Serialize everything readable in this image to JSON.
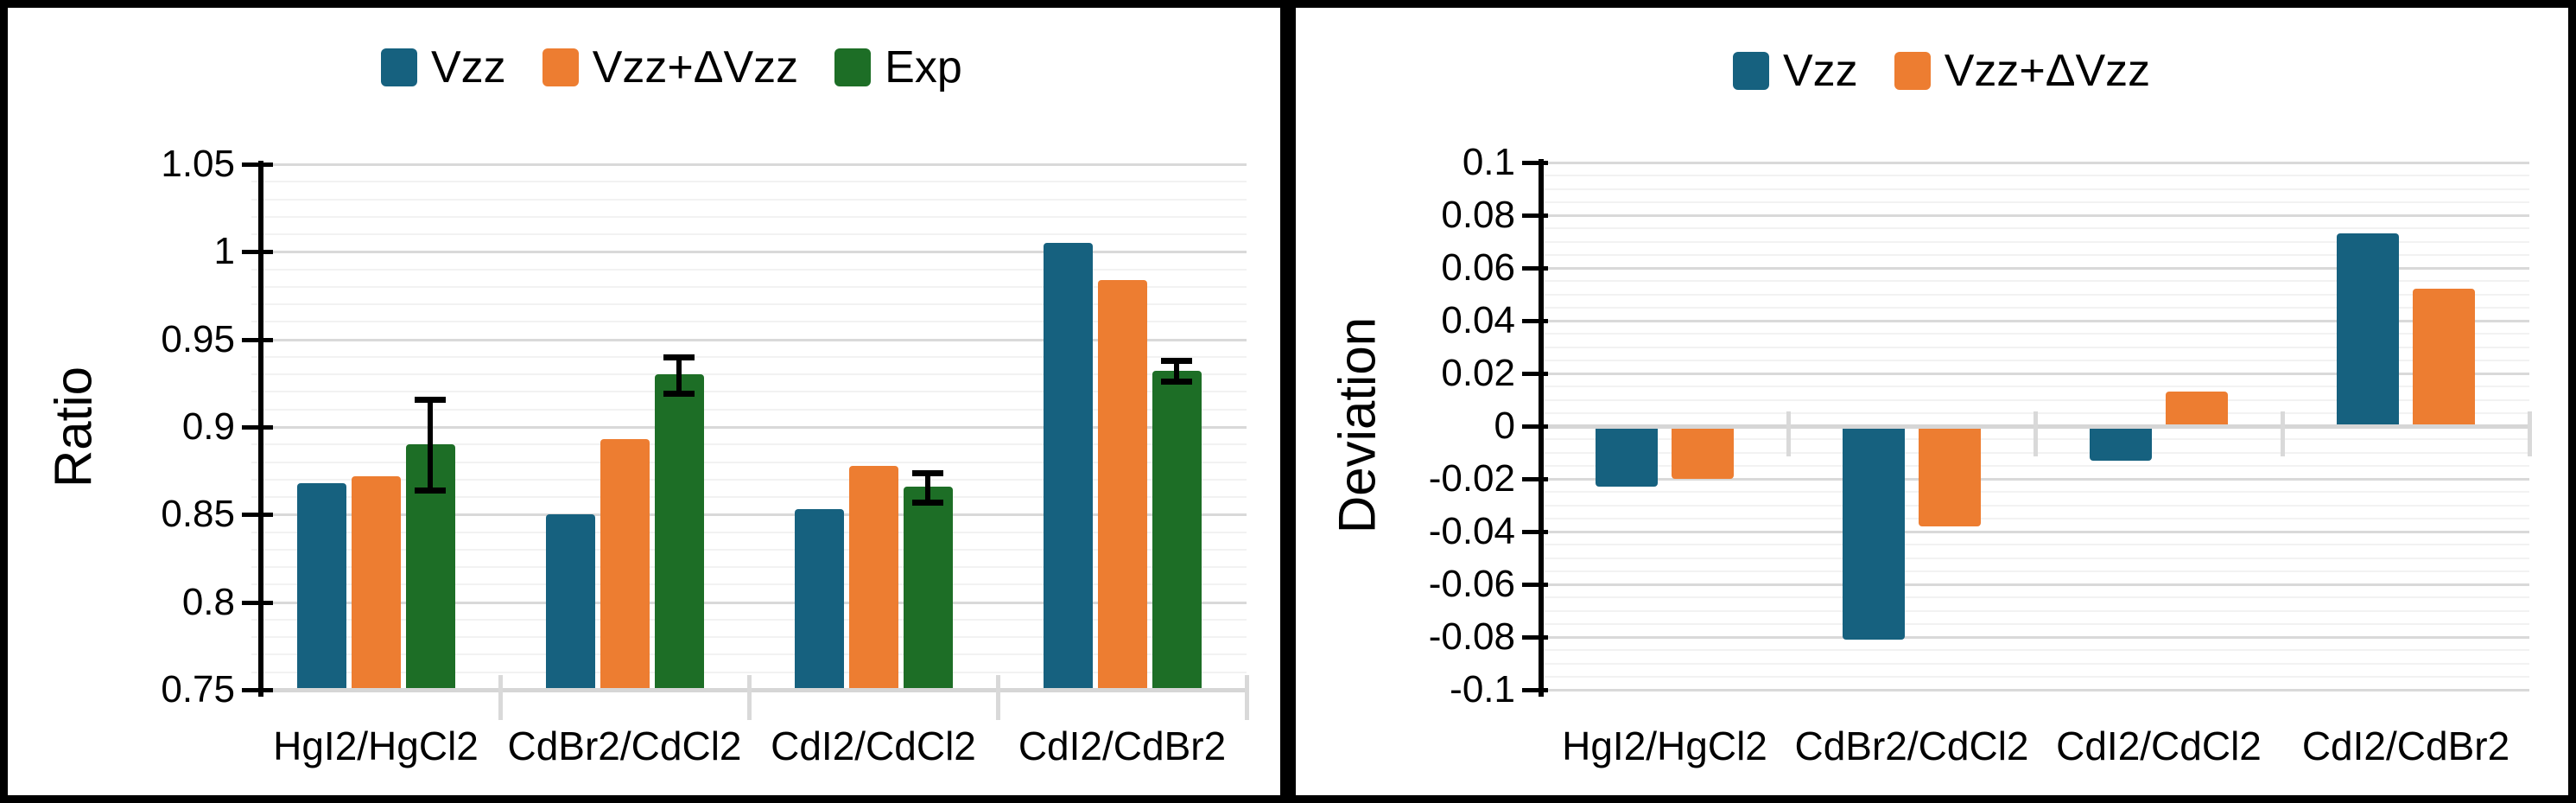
{
  "figure": {
    "background": "#ffffff",
    "border_color": "#000000"
  },
  "chart_data": [
    {
      "type": "bar",
      "panel": "left",
      "title": "",
      "xlabel": "",
      "ylabel": "Ratio",
      "categories": [
        "HgI2/HgCl2",
        "CdBr2/CdCl2",
        "CdI2/CdCl2",
        "CdI2/CdBr2"
      ],
      "ylim": [
        0.75,
        1.05
      ],
      "ytick_step": 0.05,
      "yminor_step": 0.01,
      "ytick_labels": [
        "1.05",
        "1",
        "0.95",
        "0.9",
        "0.85",
        "0.8",
        "0.75"
      ],
      "grid": true,
      "legend_position": "top",
      "series": [
        {
          "name": "Vzz",
          "color": "#16617f",
          "values": [
            0.868,
            0.85,
            0.853,
            1.005
          ]
        },
        {
          "name": "Vzz+ΔVzz",
          "color": "#ed7d31",
          "values": [
            0.872,
            0.893,
            0.878,
            0.984
          ]
        },
        {
          "name": "Exp",
          "color": "#1d6e26",
          "values": [
            0.89,
            0.93,
            0.866,
            0.932
          ],
          "error_bars": {
            "low": [
              0.864,
              0.919,
              0.857,
              0.926
            ],
            "high": [
              0.916,
              0.94,
              0.874,
              0.938
            ]
          }
        }
      ]
    },
    {
      "type": "bar",
      "panel": "right",
      "title": "",
      "xlabel": "",
      "ylabel": "Deviation",
      "categories": [
        "HgI2/HgCl2",
        "CdBr2/CdCl2",
        "CdI2/CdCl2",
        "CdI2/CdBr2"
      ],
      "ylim": [
        -0.1,
        0.1
      ],
      "ytick_step": 0.02,
      "yminor_step": 0.005,
      "ytick_labels": [
        "0.1",
        "0.08",
        "0.06",
        "0.04",
        "0.02",
        "0",
        "-0.02",
        "-0.04",
        "-0.06",
        "-0.08",
        "-0.1"
      ],
      "grid": true,
      "legend_position": "top",
      "series": [
        {
          "name": "Vzz",
          "color": "#16617f",
          "values": [
            -0.023,
            -0.081,
            -0.013,
            0.073
          ]
        },
        {
          "name": "Vzz+ΔVzz",
          "color": "#ed7d31",
          "values": [
            -0.02,
            -0.038,
            0.013,
            0.052
          ]
        }
      ]
    }
  ]
}
